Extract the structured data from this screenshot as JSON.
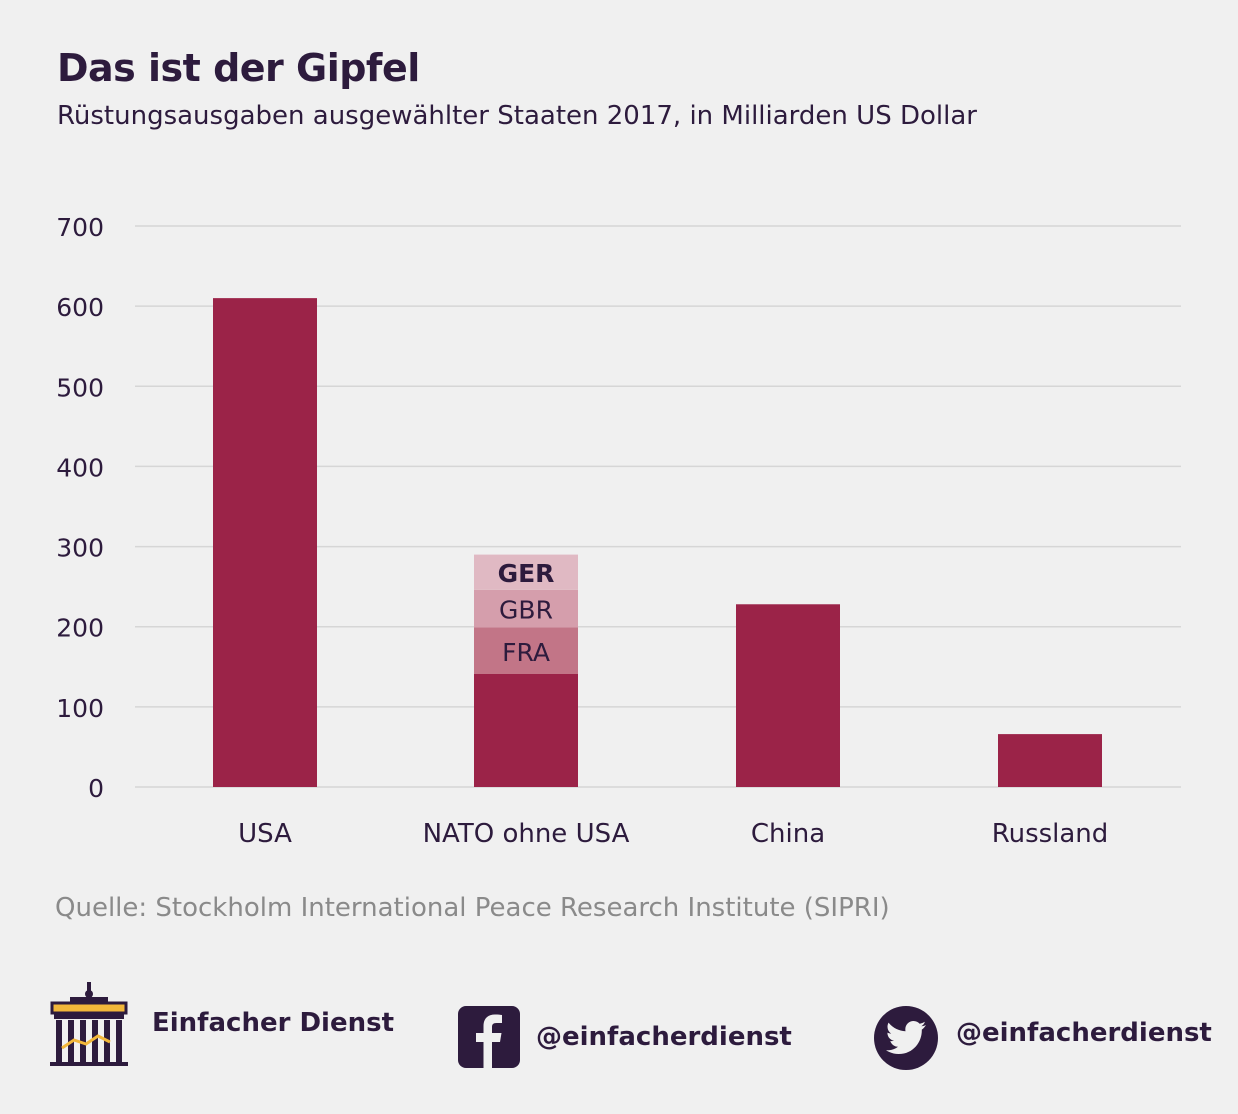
{
  "header": {
    "title": "Das ist der Gipfel",
    "subtitle": "Rüstungsausgaben ausgewählter Staaten 2017, in Milliarden US Dollar"
  },
  "chart_data": {
    "type": "bar",
    "title": "Das ist der Gipfel",
    "subtitle": "Rüstungsausgaben ausgewählter Staaten 2017, in Milliarden US Dollar",
    "xlabel": "",
    "ylabel": "",
    "ylim": [
      0,
      700
    ],
    "yticks": [
      0,
      100,
      200,
      300,
      400,
      500,
      600,
      700
    ],
    "grid": true,
    "categories": [
      "USA",
      "NATO ohne USA",
      "China",
      "Russland"
    ],
    "values": [
      610,
      290,
      228,
      66
    ],
    "stacked_segments": {
      "category": "NATO ohne USA",
      "base": 141,
      "segments": [
        {
          "label": "FRA",
          "value": 58
        },
        {
          "label": "GBR",
          "value": 47
        },
        {
          "label": "GER",
          "value": 44
        }
      ]
    },
    "colors": {
      "bar": "#9b2348",
      "FRA": "#c27587",
      "GBR": "#d59eac",
      "GER": "#e0b9c3",
      "grid": "#d6d6d6"
    }
  },
  "source": "Quelle: Stockholm International Peace Research Institute (SIPRI)",
  "footer": {
    "brand": "Einfacher Dienst",
    "facebook": "@einfacherdienst",
    "twitter": "@einfacherdienst",
    "icons": [
      "brandenburg-gate-icon",
      "facebook-icon",
      "twitter-icon"
    ]
  }
}
